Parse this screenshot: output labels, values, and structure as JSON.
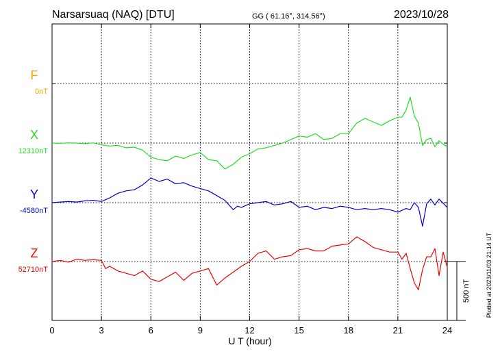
{
  "header": {
    "station": "Narsarsuaq (NAQ)  [DTU]",
    "coords": "GG ( 61.16°, 314.56°)",
    "date": "2023/10/28"
  },
  "footer": {
    "plotted": "Plotted at 2023/11/03 21:14 UT"
  },
  "colors": {
    "F": "#f0a800",
    "X": "#22dd22",
    "Y": "#0000cc",
    "Z": "#ee0000"
  },
  "chart_data": {
    "type": "line",
    "xlabel": "U T (hour)",
    "xlim": [
      0,
      24
    ],
    "xticks": [
      0,
      3,
      6,
      9,
      12,
      15,
      18,
      21,
      24
    ],
    "scale_bar_label": "500 nT",
    "series": [
      {
        "name": "F",
        "baseline_label": "0nT",
        "x": [],
        "y": []
      },
      {
        "name": "X",
        "baseline_label": "12310nT",
        "x": [
          0,
          0.5,
          1,
          1.5,
          2,
          2.5,
          3,
          3.5,
          4,
          4.5,
          5,
          5.5,
          6,
          6.5,
          7,
          7.5,
          8,
          8.5,
          9,
          9.5,
          10,
          10.5,
          11,
          11.5,
          12,
          12.5,
          13,
          13.5,
          14,
          14.5,
          15,
          15.5,
          16,
          16.5,
          17,
          17.5,
          18,
          18.5,
          19,
          19.5,
          20,
          20.5,
          21,
          21.25,
          21.5,
          21.75,
          22,
          22.25,
          22.5,
          22.75,
          23,
          23.25,
          23.5,
          23.75,
          24
        ],
        "y": [
          0,
          -2,
          2,
          0,
          -5,
          2,
          -15,
          -25,
          -20,
          -40,
          -35,
          -60,
          -120,
          -140,
          -150,
          -110,
          -130,
          -100,
          -80,
          -140,
          -150,
          -220,
          -180,
          -120,
          -90,
          -50,
          -40,
          -20,
          0,
          30,
          60,
          50,
          80,
          30,
          40,
          80,
          80,
          170,
          210,
          180,
          150,
          190,
          220,
          220,
          280,
          390,
          230,
          170,
          -20,
          30,
          40,
          -30,
          20,
          -10,
          -30
        ]
      },
      {
        "name": "Y",
        "baseline_label": "-4580nT",
        "x": [
          0,
          0.5,
          1,
          1.5,
          2,
          2.5,
          3,
          3.5,
          4,
          4.5,
          5,
          5.5,
          6,
          6.5,
          7,
          7.5,
          8,
          8.5,
          9,
          9.5,
          10,
          10.5,
          11,
          11.25,
          11.5,
          12,
          12.5,
          13,
          13.5,
          14,
          14.5,
          15,
          15.5,
          16,
          16.5,
          17,
          17.5,
          18,
          18.5,
          19,
          19.5,
          20,
          20.5,
          21,
          21.5,
          21.75,
          22,
          22.25,
          22.5,
          22.75,
          23,
          23.25,
          23.5,
          24
        ],
        "y": [
          0,
          5,
          10,
          5,
          15,
          20,
          10,
          40,
          80,
          100,
          110,
          150,
          210,
          180,
          200,
          160,
          170,
          140,
          120,
          100,
          60,
          20,
          -60,
          -30,
          -40,
          -10,
          0,
          10,
          -20,
          -10,
          10,
          -40,
          -30,
          -60,
          -40,
          -50,
          -30,
          -40,
          -60,
          -50,
          -60,
          -50,
          -60,
          -80,
          -50,
          -60,
          0,
          -40,
          -200,
          -10,
          30,
          -20,
          30,
          -40
        ]
      },
      {
        "name": "Z",
        "baseline_label": "52710nT",
        "x": [
          0,
          0.5,
          1,
          1.5,
          2,
          2.5,
          3,
          3.25,
          3.5,
          4,
          4.5,
          5,
          5.5,
          6,
          6.5,
          7,
          7.5,
          8,
          8.5,
          9,
          9.5,
          10,
          10.5,
          11,
          11.5,
          12,
          12.5,
          13,
          13.5,
          14,
          14.5,
          15,
          15.5,
          16,
          16.5,
          17,
          17.5,
          18,
          18.5,
          19,
          19.5,
          20,
          20.5,
          21,
          21.25,
          21.5,
          21.75,
          22,
          22.25,
          22.5,
          22.75,
          23,
          23.25,
          23.5,
          23.75,
          24
        ],
        "y": [
          0,
          10,
          -5,
          20,
          10,
          15,
          10,
          -60,
          -40,
          -80,
          -100,
          -120,
          -80,
          -150,
          -170,
          -130,
          -90,
          -160,
          -100,
          -80,
          -60,
          -200,
          -140,
          -90,
          -40,
          0,
          70,
          90,
          20,
          40,
          50,
          100,
          110,
          90,
          90,
          130,
          140,
          150,
          210,
          170,
          120,
          100,
          80,
          80,
          20,
          70,
          -60,
          -180,
          -240,
          -70,
          40,
          40,
          110,
          -120,
          80,
          -50
        ]
      }
    ]
  }
}
